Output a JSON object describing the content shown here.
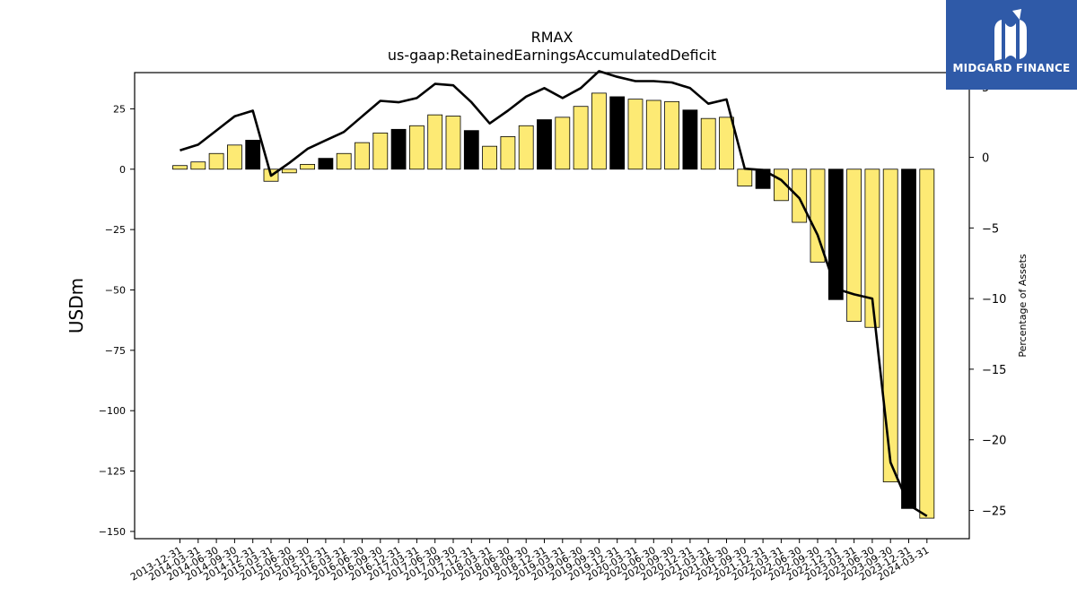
{
  "title": "RMAX",
  "subtitle": "us-gaap:RetainedEarningsAccumulatedDeficit",
  "logo": {
    "text": "MIDGARD FINANCE",
    "bg_color": "#2f5aa8"
  },
  "colors": {
    "bar_yellow": "#fdea74",
    "bar_black": "#000000",
    "line": "#000000"
  },
  "chart_data": {
    "type": "bar",
    "ylabel": "USDm",
    "y2label": "Percentage of Assets",
    "ylim": [
      -153,
      40
    ],
    "y2lim": [
      -27,
      6
    ],
    "yticks": [
      25,
      0,
      -25,
      -50,
      -75,
      -100,
      -125,
      -150
    ],
    "y2ticks": [
      5,
      0,
      -5,
      -10,
      -15,
      -20,
      -25
    ],
    "categories": [
      "2013-12-31",
      "2014-03-31",
      "2014-06-30",
      "2014-09-30",
      "2014-12-31",
      "2015-03-31",
      "2015-06-30",
      "2015-09-30",
      "2015-12-31",
      "2016-03-31",
      "2016-06-30",
      "2016-09-30",
      "2016-12-31",
      "2017-03-31",
      "2017-06-30",
      "2017-09-30",
      "2017-12-31",
      "2018-03-31",
      "2018-06-30",
      "2018-09-30",
      "2018-12-31",
      "2019-03-31",
      "2019-06-30",
      "2019-09-30",
      "2019-12-31",
      "2020-03-31",
      "2020-06-30",
      "2020-09-30",
      "2020-12-31",
      "2021-03-31",
      "2021-06-30",
      "2021-09-30",
      "2021-12-31",
      "2022-03-31",
      "2022-06-30",
      "2022-09-30",
      "2022-12-31",
      "2023-03-31",
      "2023-06-30",
      "2023-09-30",
      "2023-12-31",
      "2024-03-31"
    ],
    "series": [
      {
        "type": "bar",
        "values": [
          1.5,
          3,
          6.5,
          10,
          12,
          -5,
          -1.5,
          2,
          4.5,
          6.5,
          11,
          15,
          16.5,
          18,
          22.5,
          22,
          16,
          9.5,
          13.5,
          18,
          20.5,
          21.5,
          26,
          31.5,
          30,
          29,
          28.5,
          28,
          24.5,
          21,
          21.5,
          -7,
          -8,
          -13,
          -22,
          -38.5,
          -54,
          -63,
          -65.5,
          -129.5,
          -140.5,
          -144.5
        ],
        "highlight": [
          "yellow",
          "yellow",
          "yellow",
          "yellow",
          "black",
          "yellow",
          "yellow",
          "yellow",
          "black",
          "yellow",
          "yellow",
          "yellow",
          "black",
          "yellow",
          "yellow",
          "yellow",
          "black",
          "yellow",
          "yellow",
          "yellow",
          "black",
          "yellow",
          "yellow",
          "yellow",
          "black",
          "yellow",
          "yellow",
          "yellow",
          "black",
          "yellow",
          "yellow",
          "yellow",
          "black",
          "yellow",
          "yellow",
          "yellow",
          "black",
          "yellow",
          "yellow",
          "yellow",
          "black",
          "yellow"
        ]
      },
      {
        "type": "line",
        "axis": "right",
        "values": [
          0.5,
          0.9,
          1.9,
          2.9,
          3.3,
          -1.3,
          -0.4,
          0.6,
          1.2,
          1.8,
          2.9,
          4.0,
          3.9,
          4.2,
          5.2,
          5.1,
          3.9,
          2.4,
          3.3,
          4.3,
          4.9,
          4.2,
          4.9,
          6.1,
          5.7,
          5.4,
          5.4,
          5.3,
          4.9,
          3.8,
          4.1,
          -0.8,
          -0.9,
          -1.6,
          -2.9,
          -5.5,
          -9.3,
          -9.7,
          -10.0,
          -21.6,
          -24.6,
          -25.4
        ]
      }
    ]
  }
}
